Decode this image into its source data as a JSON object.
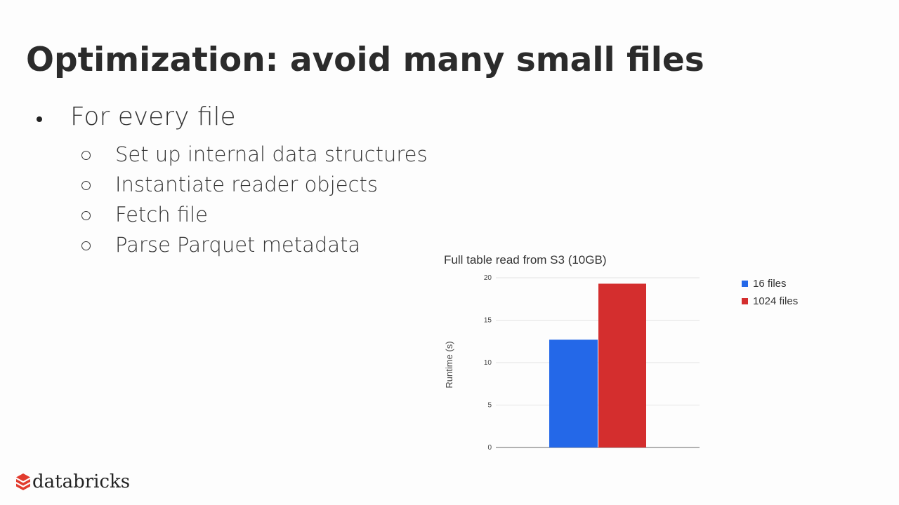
{
  "slide": {
    "title": "Optimization: avoid many small files",
    "bullet": "For every file",
    "sub_bullets": [
      "Set up internal data structures",
      "Instantiate reader objects",
      "Fetch file",
      "Parse Parquet metadata"
    ]
  },
  "chart_data": {
    "type": "bar",
    "title": "Full table read from S3 (10GB)",
    "ylabel": "Runtime (s)",
    "xlabel": "",
    "ylim": [
      0,
      20
    ],
    "yticks": [
      0,
      5,
      10,
      15,
      20
    ],
    "categories": [
      ""
    ],
    "series": [
      {
        "name": "16 files",
        "values": [
          12.7
        ],
        "color": "#2468e8"
      },
      {
        "name": "1024 files",
        "values": [
          19.3
        ],
        "color": "#d42e2e"
      }
    ],
    "grid": true,
    "legend_position": "right"
  },
  "logo": {
    "text": "databricks",
    "color": "#e23b2e"
  }
}
